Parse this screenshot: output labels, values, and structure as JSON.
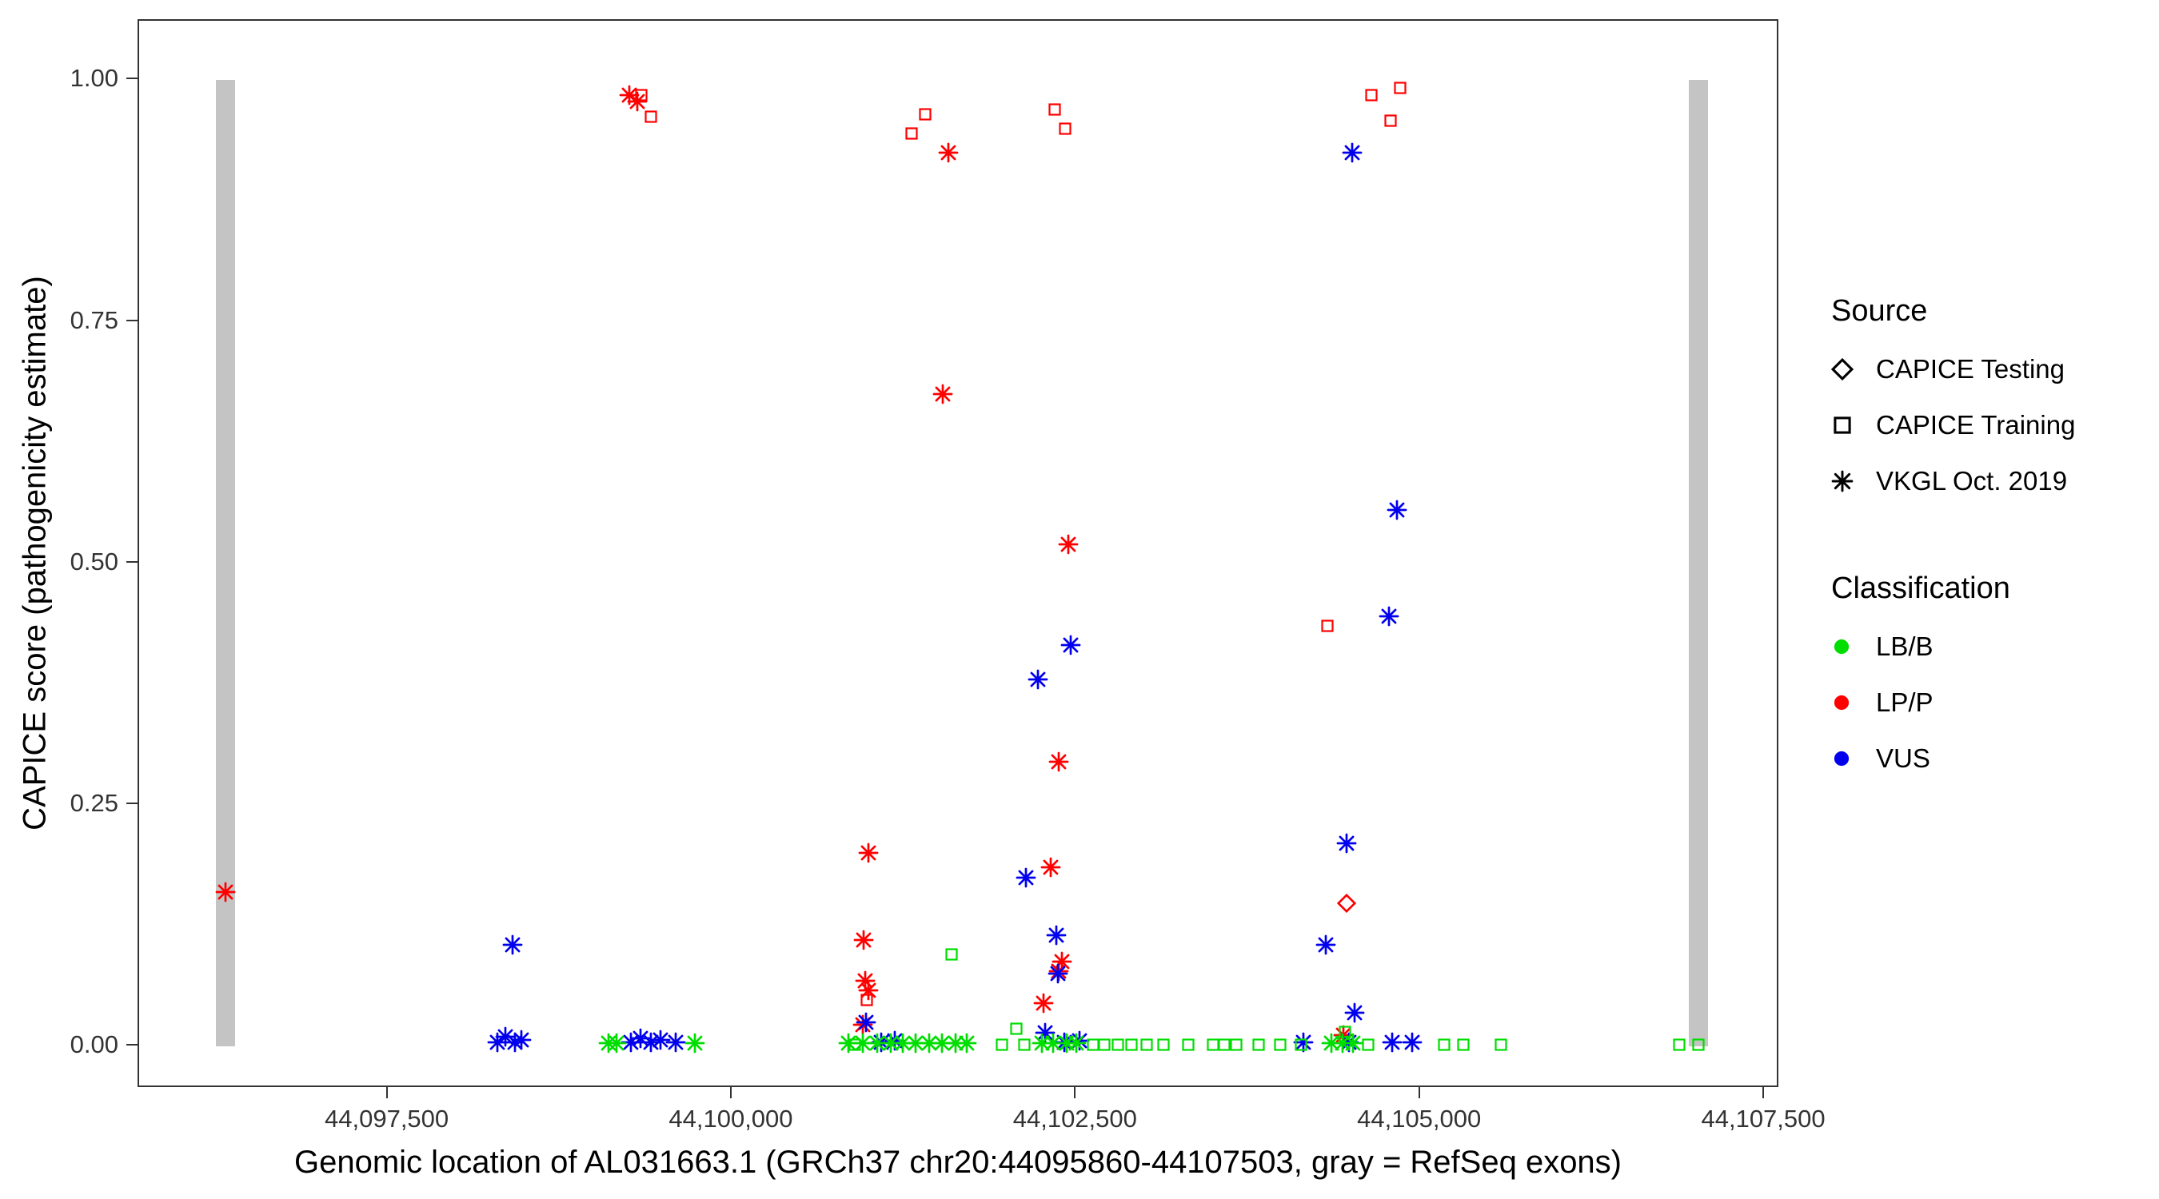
{
  "figure": {
    "background": "#ffffff",
    "panel_border_color": "#333333",
    "exon_color": "#c4c4c4",
    "tick_color": "#333333"
  },
  "axes": {
    "x": {
      "title": "Genomic location of AL031663.1 (GRCh37 chr20:44095860-44107503, gray = RefSeq exons)",
      "ticks": [
        44097500,
        44100000,
        44102500,
        44105000,
        44107500
      ],
      "tick_labels": [
        "44,097,500",
        "44,100,000",
        "44,102,500",
        "44,105,000",
        "44,107,500"
      ],
      "domain": [
        44095690,
        44107610
      ]
    },
    "y": {
      "title": "CAPICE score (pathogenicity estimate)",
      "ticks": [
        0,
        0.25,
        0.5,
        0.75,
        1
      ],
      "tick_labels": [
        "0.00",
        "0.25",
        "0.50",
        "0.75",
        "1.00"
      ],
      "domain": [
        -0.0438,
        1.0616
      ]
    }
  },
  "legend": {
    "source": {
      "title": "Source",
      "items": [
        {
          "label": "CAPICE Testing",
          "shape": "diamond"
        },
        {
          "label": "CAPICE Training",
          "shape": "square"
        },
        {
          "label": "VKGL Oct. 2019",
          "shape": "asterisk"
        }
      ]
    },
    "classification": {
      "title": "Classification",
      "items": [
        {
          "label": "LB/B",
          "color": "#00dd00"
        },
        {
          "label": "LP/P",
          "color": "#ff0000"
        },
        {
          "label": "VUS",
          "color": "#0000ee"
        }
      ]
    }
  },
  "chart_data": {
    "type": "scatter",
    "title": "",
    "xlabel": "Genomic location of AL031663.1 (GRCh37 chr20:44095860-44107503, gray = RefSeq exons)",
    "ylabel": "CAPICE score (pathogenicity estimate)",
    "xlim": [
      44095690,
      44107610
    ],
    "ylim": [
      -0.0438,
      1.0616
    ],
    "grid": false,
    "legend_position": "right",
    "class_colors": {
      "LB/B": "#00dd00",
      "LP/P": "#ff0000",
      "VUS": "#0000ee"
    },
    "source_shapes": {
      "CAPICE Testing": "diamond",
      "CAPICE Training": "square",
      "VKGL Oct. 2019": "asterisk"
    },
    "exons": [
      {
        "start": 44096250,
        "end": 44096390,
        "y0": 0.0,
        "y1": 1.0
      },
      {
        "start": 44106950,
        "end": 44107090,
        "y0": 0.0,
        "y1": 1.0
      }
    ],
    "columns": [
      "position",
      "capice_score",
      "classification",
      "source"
    ],
    "points": [
      [
        44096320,
        0.16,
        "LP/P",
        "VKGL Oct. 2019"
      ],
      [
        44099250,
        0.985,
        "LP/P",
        "VKGL Oct. 2019"
      ],
      [
        44099310,
        0.978,
        "LP/P",
        "VKGL Oct. 2019"
      ],
      [
        44101570,
        0.925,
        "LP/P",
        "VKGL Oct. 2019"
      ],
      [
        44101530,
        0.675,
        "LP/P",
        "VKGL Oct. 2019"
      ],
      [
        44100990,
        0.2,
        "LP/P",
        "VKGL Oct. 2019"
      ],
      [
        44100955,
        0.11,
        "LP/P",
        "VKGL Oct. 2019"
      ],
      [
        44100965,
        0.068,
        "LP/P",
        "VKGL Oct. 2019"
      ],
      [
        44100990,
        0.058,
        "LP/P",
        "VKGL Oct. 2019"
      ],
      [
        44100950,
        0.022,
        "LP/P",
        "VKGL Oct. 2019"
      ],
      [
        44102440,
        0.52,
        "LP/P",
        "VKGL Oct. 2019"
      ],
      [
        44102370,
        0.295,
        "LP/P",
        "VKGL Oct. 2019"
      ],
      [
        44102310,
        0.185,
        "LP/P",
        "VKGL Oct. 2019"
      ],
      [
        44102395,
        0.088,
        "LP/P",
        "VKGL Oct. 2019"
      ],
      [
        44102370,
        0.078,
        "LP/P",
        "VKGL Oct. 2019"
      ],
      [
        44102260,
        0.045,
        "LP/P",
        "VKGL Oct. 2019"
      ],
      [
        44104440,
        0.012,
        "LP/P",
        "VKGL Oct. 2019"
      ],
      [
        44099340,
        0.985,
        "LP/P",
        "CAPICE Training"
      ],
      [
        44099410,
        0.962,
        "LP/P",
        "CAPICE Training"
      ],
      [
        44101400,
        0.965,
        "LP/P",
        "CAPICE Training"
      ],
      [
        44101300,
        0.945,
        "LP/P",
        "CAPICE Training"
      ],
      [
        44102340,
        0.97,
        "LP/P",
        "CAPICE Training"
      ],
      [
        44102415,
        0.95,
        "LP/P",
        "CAPICE Training"
      ],
      [
        44104640,
        0.985,
        "LP/P",
        "CAPICE Training"
      ],
      [
        44104850,
        0.992,
        "LP/P",
        "CAPICE Training"
      ],
      [
        44104780,
        0.958,
        "LP/P",
        "CAPICE Training"
      ],
      [
        44104320,
        0.435,
        "LP/P",
        "CAPICE Training"
      ],
      [
        44100975,
        0.048,
        "LP/P",
        "CAPICE Training"
      ],
      [
        44104460,
        0.148,
        "LP/P",
        "CAPICE Testing"
      ],
      [
        44104500,
        0.925,
        "VUS",
        "VKGL Oct. 2019"
      ],
      [
        44104830,
        0.555,
        "VUS",
        "VKGL Oct. 2019"
      ],
      [
        44104770,
        0.445,
        "VUS",
        "VKGL Oct. 2019"
      ],
      [
        44102460,
        0.415,
        "VUS",
        "VKGL Oct. 2019"
      ],
      [
        44102220,
        0.38,
        "VUS",
        "VKGL Oct. 2019"
      ],
      [
        44104460,
        0.21,
        "VUS",
        "VKGL Oct. 2019"
      ],
      [
        44102130,
        0.175,
        "VUS",
        "VKGL Oct. 2019"
      ],
      [
        44102350,
        0.115,
        "VUS",
        "VKGL Oct. 2019"
      ],
      [
        44104310,
        0.105,
        "VUS",
        "VKGL Oct. 2019"
      ],
      [
        44098400,
        0.105,
        "VUS",
        "VKGL Oct. 2019"
      ],
      [
        44102365,
        0.075,
        "VUS",
        "VKGL Oct. 2019"
      ],
      [
        44104520,
        0.035,
        "VUS",
        "VKGL Oct. 2019"
      ],
      [
        44100970,
        0.025,
        "VUS",
        "VKGL Oct. 2019"
      ],
      [
        44102270,
        0.014,
        "VUS",
        "VKGL Oct. 2019"
      ],
      [
        44098290,
        0.004,
        "VUS",
        "VKGL Oct. 2019"
      ],
      [
        44098350,
        0.01,
        "VUS",
        "VKGL Oct. 2019"
      ],
      [
        44098420,
        0.004,
        "VUS",
        "VKGL Oct. 2019"
      ],
      [
        44098465,
        0.007,
        "VUS",
        "VKGL Oct. 2019"
      ],
      [
        44099260,
        0.004,
        "VUS",
        "VKGL Oct. 2019"
      ],
      [
        44099330,
        0.008,
        "VUS",
        "VKGL Oct. 2019"
      ],
      [
        44099405,
        0.004,
        "VUS",
        "VKGL Oct. 2019"
      ],
      [
        44099480,
        0.007,
        "VUS",
        "VKGL Oct. 2019"
      ],
      [
        44099590,
        0.004,
        "VUS",
        "VKGL Oct. 2019"
      ],
      [
        44101080,
        0.004,
        "VUS",
        "VKGL Oct. 2019"
      ],
      [
        44101180,
        0.006,
        "VUS",
        "VKGL Oct. 2019"
      ],
      [
        44102410,
        0.004,
        "VUS",
        "VKGL Oct. 2019"
      ],
      [
        44102520,
        0.006,
        "VUS",
        "VKGL Oct. 2019"
      ],
      [
        44104150,
        0.004,
        "VUS",
        "VKGL Oct. 2019"
      ],
      [
        44104480,
        0.004,
        "VUS",
        "VKGL Oct. 2019"
      ],
      [
        44104790,
        0.004,
        "VUS",
        "VKGL Oct. 2019"
      ],
      [
        44104940,
        0.004,
        "VUS",
        "VKGL Oct. 2019"
      ],
      [
        44101590,
        0.095,
        "LB/B",
        "CAPICE Training"
      ],
      [
        44102060,
        0.018,
        "LB/B",
        "CAPICE Training"
      ],
      [
        44104450,
        0.015,
        "LB/B",
        "CAPICE Training"
      ],
      [
        44100890,
        0.002,
        "LB/B",
        "CAPICE Training"
      ],
      [
        44101960,
        0.002,
        "LB/B",
        "CAPICE Training"
      ],
      [
        44102120,
        0.002,
        "LB/B",
        "CAPICE Training"
      ],
      [
        44102620,
        0.002,
        "LB/B",
        "CAPICE Training"
      ],
      [
        44102700,
        0.002,
        "LB/B",
        "CAPICE Training"
      ],
      [
        44102800,
        0.002,
        "LB/B",
        "CAPICE Training"
      ],
      [
        44102900,
        0.002,
        "LB/B",
        "CAPICE Training"
      ],
      [
        44103010,
        0.002,
        "LB/B",
        "CAPICE Training"
      ],
      [
        44103130,
        0.002,
        "LB/B",
        "CAPICE Training"
      ],
      [
        44103310,
        0.002,
        "LB/B",
        "CAPICE Training"
      ],
      [
        44103490,
        0.002,
        "LB/B",
        "CAPICE Training"
      ],
      [
        44103570,
        0.002,
        "LB/B",
        "CAPICE Training"
      ],
      [
        44103660,
        0.002,
        "LB/B",
        "CAPICE Training"
      ],
      [
        44103820,
        0.002,
        "LB/B",
        "CAPICE Training"
      ],
      [
        44103980,
        0.002,
        "LB/B",
        "CAPICE Training"
      ],
      [
        44104130,
        0.002,
        "LB/B",
        "CAPICE Training"
      ],
      [
        44104620,
        0.002,
        "LB/B",
        "CAPICE Training"
      ],
      [
        44105170,
        0.002,
        "LB/B",
        "CAPICE Training"
      ],
      [
        44105310,
        0.002,
        "LB/B",
        "CAPICE Training"
      ],
      [
        44105580,
        0.002,
        "LB/B",
        "CAPICE Training"
      ],
      [
        44106880,
        0.002,
        "LB/B",
        "CAPICE Training"
      ],
      [
        44107020,
        0.002,
        "LB/B",
        "CAPICE Training"
      ],
      [
        44099100,
        0.003,
        "LB/B",
        "VKGL Oct. 2019"
      ],
      [
        44099160,
        0.003,
        "LB/B",
        "VKGL Oct. 2019"
      ],
      [
        44099730,
        0.003,
        "LB/B",
        "VKGL Oct. 2019"
      ],
      [
        44100840,
        0.003,
        "LB/B",
        "VKGL Oct. 2019"
      ],
      [
        44100950,
        0.003,
        "LB/B",
        "VKGL Oct. 2019"
      ],
      [
        44101050,
        0.003,
        "LB/B",
        "VKGL Oct. 2019"
      ],
      [
        44101150,
        0.003,
        "LB/B",
        "VKGL Oct. 2019"
      ],
      [
        44101240,
        0.003,
        "LB/B",
        "VKGL Oct. 2019"
      ],
      [
        44101330,
        0.003,
        "LB/B",
        "VKGL Oct. 2019"
      ],
      [
        44101430,
        0.003,
        "LB/B",
        "VKGL Oct. 2019"
      ],
      [
        44101520,
        0.003,
        "LB/B",
        "VKGL Oct. 2019"
      ],
      [
        44101620,
        0.003,
        "LB/B",
        "VKGL Oct. 2019"
      ],
      [
        44101700,
        0.003,
        "LB/B",
        "VKGL Oct. 2019"
      ],
      [
        44102250,
        0.003,
        "LB/B",
        "VKGL Oct. 2019"
      ],
      [
        44102330,
        0.003,
        "LB/B",
        "VKGL Oct. 2019"
      ],
      [
        44102430,
        0.003,
        "LB/B",
        "VKGL Oct. 2019"
      ],
      [
        44102500,
        0.003,
        "LB/B",
        "VKGL Oct. 2019"
      ],
      [
        44104350,
        0.003,
        "LB/B",
        "VKGL Oct. 2019"
      ],
      [
        44104430,
        0.003,
        "LB/B",
        "VKGL Oct. 2019"
      ],
      [
        44104510,
        0.003,
        "LB/B",
        "VKGL Oct. 2019"
      ]
    ]
  }
}
